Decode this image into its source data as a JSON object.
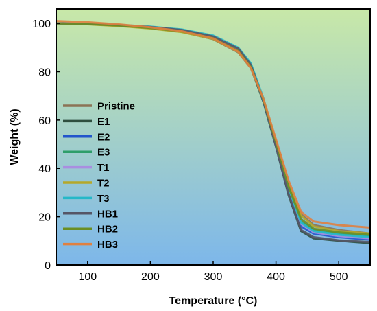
{
  "chart_data": {
    "type": "line",
    "title": "",
    "xlabel": "Temperature (°C)",
    "ylabel": "Weight (%)",
    "xlim": [
      50,
      550
    ],
    "ylim": [
      0,
      106
    ],
    "x_ticks": [
      100,
      200,
      300,
      400,
      500
    ],
    "y_ticks": [
      0,
      20,
      40,
      60,
      80,
      100
    ],
    "grid": false,
    "legend_position": "left",
    "background": "gradient green (top) to blue (bottom)",
    "colors": {
      "bg_top": "#c8e8a8",
      "bg_bottom": "#7db7ea"
    },
    "series": [
      {
        "name": "Pristine",
        "color": "#8b7355",
        "x": [
          50,
          100,
          150,
          200,
          250,
          300,
          340,
          360,
          380,
          400,
          420,
          440,
          460,
          500,
          550
        ],
        "y": [
          100,
          99.7,
          99.0,
          98.0,
          96.5,
          93.5,
          88.0,
          81.5,
          68.0,
          51.0,
          33.5,
          21.0,
          16.5,
          14.5,
          13.0
        ]
      },
      {
        "name": "E1",
        "color": "#2f4f3f",
        "x": [
          50,
          100,
          150,
          200,
          250,
          300,
          340,
          360,
          380,
          400,
          420,
          440,
          460,
          500,
          550
        ],
        "y": [
          100,
          99.8,
          99.2,
          98.3,
          97.0,
          94.2,
          89.0,
          82.0,
          67.5,
          49.0,
          29.0,
          14.0,
          11.0,
          10.0,
          9.0
        ]
      },
      {
        "name": "E2",
        "color": "#2255cc",
        "x": [
          50,
          100,
          150,
          200,
          250,
          300,
          340,
          360,
          380,
          400,
          420,
          440,
          460,
          500,
          550
        ],
        "y": [
          100,
          99.8,
          99.3,
          98.5,
          97.2,
          94.5,
          89.5,
          82.5,
          68.0,
          49.5,
          30.0,
          16.0,
          13.0,
          11.5,
          10.5
        ]
      },
      {
        "name": "E3",
        "color": "#2e9e6a",
        "x": [
          50,
          100,
          150,
          200,
          250,
          300,
          340,
          360,
          380,
          400,
          420,
          440,
          460,
          500,
          550
        ],
        "y": [
          100,
          99.7,
          99.1,
          98.2,
          96.8,
          94.0,
          88.5,
          82.0,
          68.5,
          50.5,
          32.0,
          18.0,
          14.5,
          13.0,
          12.0
        ]
      },
      {
        "name": "T1",
        "color": "#a98ee0",
        "x": [
          50,
          100,
          150,
          200,
          250,
          300,
          340,
          360,
          380,
          400,
          420,
          440,
          460,
          500,
          550
        ],
        "y": [
          100,
          99.8,
          99.2,
          98.4,
          97.1,
          94.4,
          89.2,
          82.3,
          68.2,
          50.0,
          31.0,
          17.0,
          13.5,
          12.0,
          11.0
        ]
      },
      {
        "name": "T2",
        "color": "#b5a82a",
        "x": [
          50,
          100,
          150,
          200,
          250,
          300,
          340,
          360,
          380,
          400,
          420,
          440,
          460,
          500,
          550
        ],
        "y": [
          100,
          99.6,
          98.9,
          97.9,
          96.4,
          93.6,
          88.2,
          81.8,
          68.6,
          51.5,
          34.0,
          20.5,
          16.0,
          14.0,
          13.0
        ]
      },
      {
        "name": "T3",
        "color": "#25b8c8",
        "x": [
          50,
          100,
          150,
          200,
          250,
          300,
          340,
          360,
          380,
          400,
          420,
          440,
          460,
          500,
          550
        ],
        "y": [
          100,
          99.9,
          99.4,
          98.7,
          97.5,
          95.0,
          90.0,
          83.5,
          69.0,
          50.5,
          31.5,
          17.5,
          14.0,
          12.5,
          11.5
        ]
      },
      {
        "name": "HB1",
        "color": "#555566",
        "x": [
          50,
          100,
          150,
          200,
          250,
          300,
          340,
          360,
          380,
          400,
          420,
          440,
          460,
          500,
          550
        ],
        "y": [
          100,
          99.8,
          99.3,
          98.5,
          97.3,
          94.6,
          89.6,
          82.8,
          68.3,
          49.2,
          29.5,
          14.5,
          11.5,
          10.2,
          9.5
        ]
      },
      {
        "name": "HB2",
        "color": "#6b8e23",
        "x": [
          50,
          100,
          150,
          200,
          250,
          300,
          340,
          360,
          380,
          400,
          420,
          440,
          460,
          500,
          550
        ],
        "y": [
          100,
          99.7,
          99.1,
          98.1,
          96.7,
          93.9,
          88.6,
          82.0,
          68.4,
          50.8,
          32.5,
          19.0,
          15.0,
          13.5,
          12.5
        ]
      },
      {
        "name": "HB3",
        "color": "#e08040",
        "x": [
          50,
          100,
          150,
          200,
          250,
          300,
          340,
          360,
          380,
          400,
          420,
          440,
          460,
          500,
          550
        ],
        "y": [
          101,
          100.5,
          99.6,
          98.4,
          96.8,
          93.8,
          88.3,
          81.6,
          68.8,
          52.0,
          35.0,
          22.0,
          18.0,
          16.5,
          15.5
        ]
      }
    ]
  }
}
